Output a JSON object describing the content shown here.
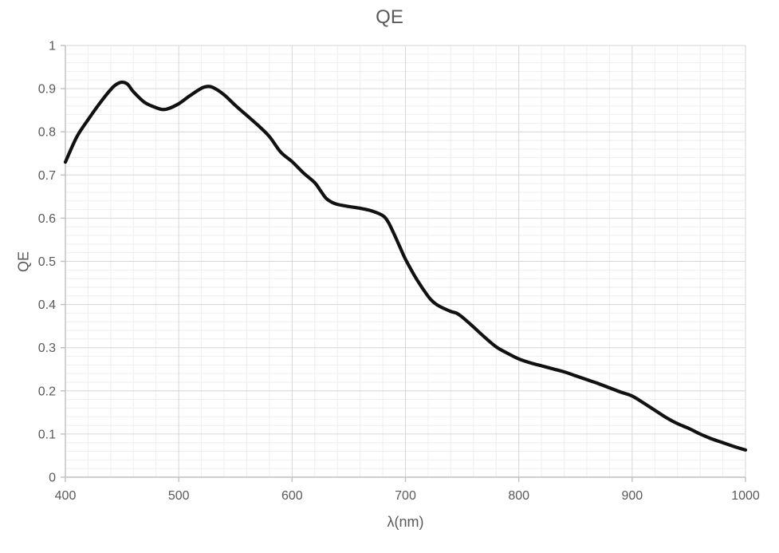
{
  "chart_data": {
    "type": "line",
    "title": "QE",
    "xlabel": "λ(nm)",
    "ylabel": "QE",
    "xlim": [
      400,
      1000
    ],
    "ylim": [
      0,
      1
    ],
    "x_major_ticks": [
      400,
      500,
      600,
      700,
      800,
      900,
      1000
    ],
    "y_major_ticks": [
      0,
      0.1,
      0.2,
      0.3,
      0.4,
      0.5,
      0.6,
      0.7,
      0.8,
      0.9,
      1
    ],
    "x_minor_step": 20,
    "y_minor_step": 0.02,
    "grid": "major and minor gridlines shown",
    "legend_position": "none",
    "series": [
      {
        "name": "QE",
        "points": [
          [
            400,
            0.73
          ],
          [
            410,
            0.788
          ],
          [
            420,
            0.828
          ],
          [
            430,
            0.865
          ],
          [
            440,
            0.898
          ],
          [
            445,
            0.91
          ],
          [
            450,
            0.915
          ],
          [
            455,
            0.91
          ],
          [
            460,
            0.893
          ],
          [
            470,
            0.868
          ],
          [
            480,
            0.856
          ],
          [
            485,
            0.852
          ],
          [
            490,
            0.853
          ],
          [
            500,
            0.865
          ],
          [
            510,
            0.884
          ],
          [
            520,
            0.901
          ],
          [
            525,
            0.905
          ],
          [
            530,
            0.903
          ],
          [
            540,
            0.886
          ],
          [
            550,
            0.861
          ],
          [
            560,
            0.838
          ],
          [
            570,
            0.815
          ],
          [
            580,
            0.789
          ],
          [
            590,
            0.753
          ],
          [
            600,
            0.731
          ],
          [
            610,
            0.705
          ],
          [
            620,
            0.682
          ],
          [
            625,
            0.664
          ],
          [
            630,
            0.646
          ],
          [
            635,
            0.637
          ],
          [
            640,
            0.632
          ],
          [
            650,
            0.627
          ],
          [
            660,
            0.623
          ],
          [
            670,
            0.617
          ],
          [
            680,
            0.606
          ],
          [
            685,
            0.59
          ],
          [
            690,
            0.563
          ],
          [
            695,
            0.534
          ],
          [
            700,
            0.505
          ],
          [
            710,
            0.458
          ],
          [
            720,
            0.419
          ],
          [
            725,
            0.405
          ],
          [
            730,
            0.396
          ],
          [
            740,
            0.384
          ],
          [
            745,
            0.38
          ],
          [
            750,
            0.371
          ],
          [
            760,
            0.348
          ],
          [
            770,
            0.324
          ],
          [
            780,
            0.302
          ],
          [
            790,
            0.287
          ],
          [
            800,
            0.274
          ],
          [
            810,
            0.265
          ],
          [
            820,
            0.258
          ],
          [
            830,
            0.251
          ],
          [
            840,
            0.244
          ],
          [
            850,
            0.235
          ],
          [
            860,
            0.226
          ],
          [
            870,
            0.217
          ],
          [
            880,
            0.207
          ],
          [
            890,
            0.197
          ],
          [
            900,
            0.188
          ],
          [
            910,
            0.172
          ],
          [
            920,
            0.155
          ],
          [
            930,
            0.138
          ],
          [
            940,
            0.124
          ],
          [
            950,
            0.113
          ],
          [
            960,
            0.1
          ],
          [
            970,
            0.089
          ],
          [
            980,
            0.08
          ],
          [
            990,
            0.071
          ],
          [
            1000,
            0.063
          ]
        ]
      }
    ]
  },
  "style": {
    "background": "#ffffff",
    "text_color": "#595959",
    "curve_color": "#111111",
    "major_grid_color": "#d6d6d6",
    "minor_grid_color": "#eeeeee",
    "axis_color": "#bfbfbf"
  }
}
